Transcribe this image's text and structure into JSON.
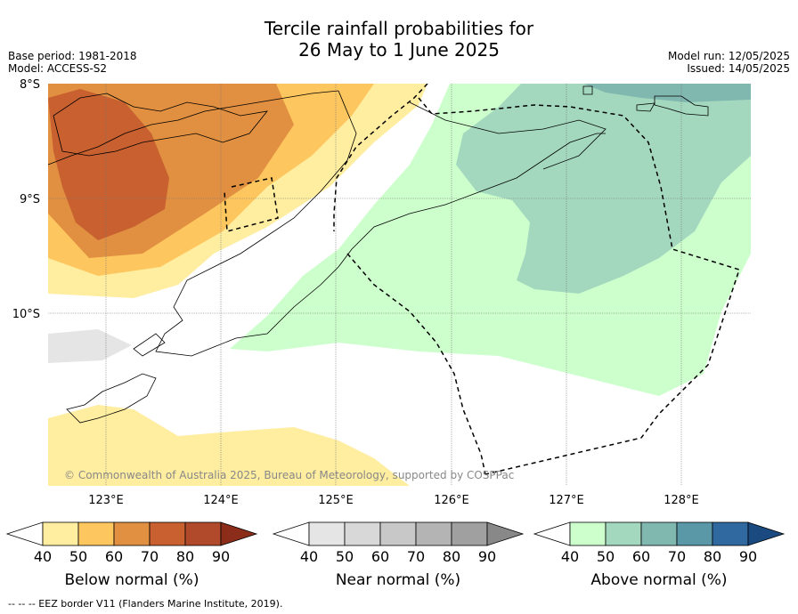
{
  "title_line1": "Tercile rainfall probabilities for",
  "title_line2": "26 May to 1 June 2025",
  "base_period": "Base period: 1981-2018",
  "model": "Model: ACCESS-S2",
  "model_run": "Model run: 12/05/2025",
  "issued": "Issued: 14/05/2025",
  "lat_labels": [
    "8°S",
    "9°S",
    "10°S"
  ],
  "lon_labels": [
    "123°E",
    "124°E",
    "125°E",
    "126°E",
    "127°E",
    "128°E"
  ],
  "copyright": "© Commonwealth of Australia 2025, Bureau of Meteorology, supported by COSPPac",
  "footer": "--  --  -- EEZ border V11 (Flanders Marine Institute, 2019).",
  "legends": [
    {
      "title": "Below normal (%)",
      "ticks": [
        "40",
        "50",
        "60",
        "70",
        "80",
        "90"
      ],
      "colors": [
        "#ffffff",
        "#ffeda0",
        "#fec65e",
        "#e09040",
        "#c86030",
        "#b04a2a",
        "#8c2d1a"
      ]
    },
    {
      "title": "Near normal (%)",
      "ticks": [
        "40",
        "50",
        "60",
        "70",
        "80",
        "90"
      ],
      "colors": [
        "#ffffff",
        "#e5e5e5",
        "#d8d8d8",
        "#c8c8c8",
        "#b4b4b4",
        "#a0a0a0",
        "#888888"
      ]
    },
    {
      "title": "Above normal (%)",
      "ticks": [
        "40",
        "50",
        "60",
        "70",
        "80",
        "90"
      ],
      "colors": [
        "#ffffff",
        "#ccffcc",
        "#a3d8bf",
        "#80b8b0",
        "#5a98a8",
        "#3068a0",
        "#1a4a80"
      ]
    }
  ]
}
